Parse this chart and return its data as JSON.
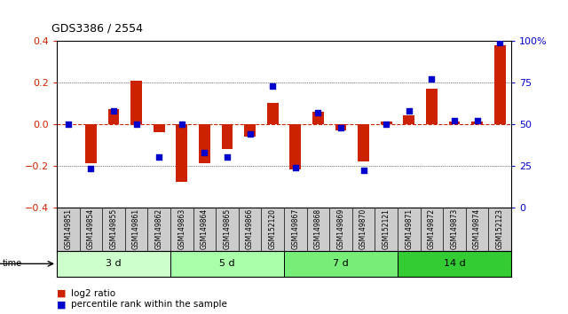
{
  "title": "GDS3386 / 2554",
  "samples": [
    "GSM149851",
    "GSM149854",
    "GSM149855",
    "GSM149861",
    "GSM149862",
    "GSM149863",
    "GSM149864",
    "GSM149865",
    "GSM149866",
    "GSM152120",
    "GSM149867",
    "GSM149868",
    "GSM149869",
    "GSM149870",
    "GSM152121",
    "GSM149871",
    "GSM149872",
    "GSM149873",
    "GSM149874",
    "GSM152123"
  ],
  "log2_ratio": [
    0.0,
    -0.19,
    0.07,
    0.21,
    -0.04,
    -0.28,
    -0.19,
    -0.12,
    -0.06,
    0.1,
    -0.22,
    0.06,
    -0.03,
    -0.18,
    0.01,
    0.04,
    0.17,
    0.01,
    0.01,
    0.38
  ],
  "percentile_rank": [
    50,
    23,
    58,
    50,
    30,
    50,
    33,
    30,
    44,
    73,
    24,
    57,
    48,
    22,
    50,
    58,
    77,
    52,
    52,
    99
  ],
  "groups": [
    {
      "label": "3 d",
      "start": 0,
      "end": 5,
      "color": "#ccffcc"
    },
    {
      "label": "5 d",
      "start": 5,
      "end": 10,
      "color": "#aaffaa"
    },
    {
      "label": "7 d",
      "start": 10,
      "end": 15,
      "color": "#77ee77"
    },
    {
      "label": "14 d",
      "start": 15,
      "end": 20,
      "color": "#33cc33"
    }
  ],
  "ylim_left": [
    -0.4,
    0.4
  ],
  "ylim_right": [
    0,
    100
  ],
  "yticks_left": [
    -0.4,
    -0.2,
    0.0,
    0.2,
    0.4
  ],
  "yticks_right": [
    0,
    25,
    50,
    75,
    100
  ],
  "bar_color": "#cc2200",
  "dot_color": "#0000cc",
  "zero_line_color": "#cc2200",
  "grid_color": "#000000",
  "bg_color": "#ffffff",
  "label_area_color": "#cccccc"
}
